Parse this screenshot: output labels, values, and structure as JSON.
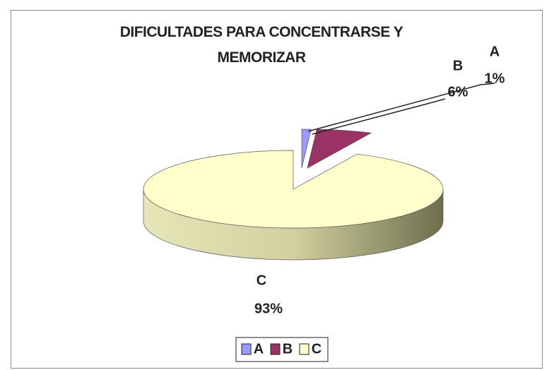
{
  "chart_data": {
    "type": "pie3d",
    "title": "DIFICULTADES PARA CONCENTRARSE Y MEMORIZAR",
    "categories": [
      "A",
      "B",
      "C"
    ],
    "values": [
      1,
      6,
      93
    ],
    "value_labels": [
      "1%",
      "6%",
      "93%"
    ],
    "colors": [
      "#9999ff",
      "#993366",
      "#ffffcc"
    ],
    "legend": "bottom"
  }
}
